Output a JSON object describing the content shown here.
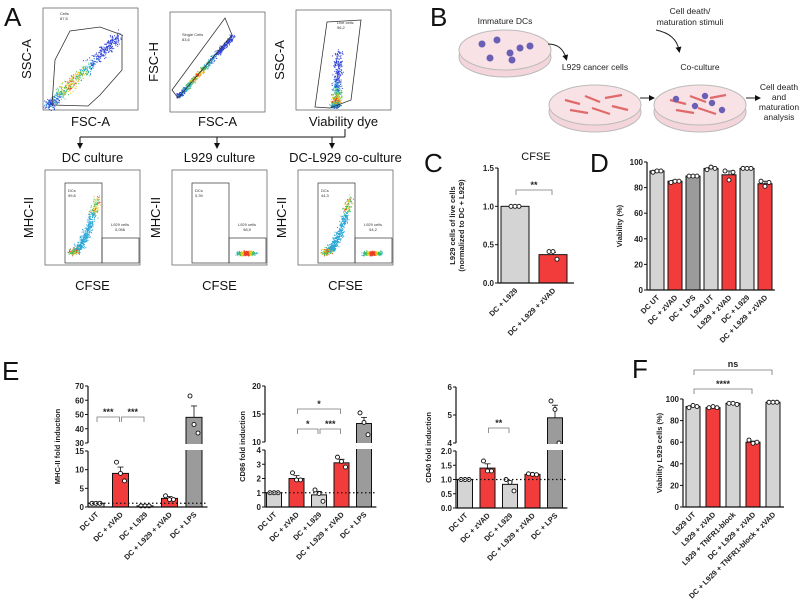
{
  "panels": {
    "A": "A",
    "B": "B",
    "C": "C",
    "D": "D",
    "E": "E",
    "F": "F"
  },
  "flow_gating": [
    {
      "x_label": "FSC-A",
      "y_label": "SSC-A",
      "gate_name": "Cells",
      "gate_value": "87,5"
    },
    {
      "x_label": "FSC-A",
      "y_label": "FSC-H",
      "gate_name": "Single Cells",
      "gate_value": "83,6"
    },
    {
      "x_label": "Viability dye",
      "y_label": "SSC-A",
      "gate_name": "Live cells",
      "gate_value": "96,2"
    }
  ],
  "flow_cultures": [
    {
      "title": "DC culture",
      "x_label": "CFSE",
      "y_label": "MHC-II",
      "gates": [
        {
          "name": "DCs",
          "value": "99,8"
        },
        {
          "name": "L929 cells",
          "value": "0,056"
        }
      ]
    },
    {
      "title": "L929 culture",
      "x_label": "CFSE",
      "y_label": "MHC-II",
      "gates": [
        {
          "name": "DCs",
          "value": "0,39"
        },
        {
          "name": "L929 cells",
          "value": "98,5"
        }
      ]
    },
    {
      "title": "DC-L929 co-culture",
      "x_label": "CFSE",
      "y_label": "MHC-II",
      "gates": [
        {
          "name": "DCs",
          "value": "44,3"
        },
        {
          "name": "L929 cells",
          "value": "54,2"
        }
      ]
    }
  ],
  "schematic": {
    "step1": "Immature DCs",
    "step2": "L929 cancer cells",
    "step3": "Co-culture",
    "stimuli_line1": "Cell death/",
    "stimuli_line2": "maturation stimuli",
    "out_line1": "Cell death",
    "out_line2": "and",
    "out_line3": "maturation",
    "out_line4": "analysis"
  },
  "colors": {
    "light": "#d4d4d4",
    "red": "#f23c3c",
    "dark": "#9b9b9b"
  },
  "chart_data": [
    {
      "id": "C",
      "type": "bar",
      "title": "CFSE",
      "ylabel": [
        "L929 cells of live cells",
        "(normalized to DC + L929)"
      ],
      "categories": [
        "DC + L929",
        "DC + L929 + zVAD"
      ],
      "values": [
        1.0,
        0.37
      ],
      "errors": [
        0,
        0.03
      ],
      "points": [
        [
          1,
          1,
          1
        ],
        [
          0.41,
          0.41,
          0.31
        ]
      ],
      "colors": [
        "light",
        "red"
      ],
      "ylim": [
        0,
        1.5
      ],
      "yticks": [
        "0.0",
        "0.5",
        "1.0",
        "1.5"
      ],
      "significance": [
        {
          "from": 0,
          "to": 1,
          "label": "**"
        }
      ]
    },
    {
      "id": "D",
      "type": "bar",
      "title": "",
      "ylabel": [
        "Viability (%)"
      ],
      "categories": [
        "DC UT",
        "DC + zVAD",
        "DC + LPS",
        "L929 UT",
        "L929 + zVAD",
        "DC + L929",
        "DC + L929 + zVAD"
      ],
      "values": [
        93,
        85,
        89,
        95,
        90,
        95,
        83
      ],
      "errors": [
        0.5,
        0.8,
        0.3,
        0.6,
        3,
        0.3,
        2
      ],
      "points": [
        [
          92,
          93,
          93
        ],
        [
          84,
          85,
          85
        ],
        [
          89,
          89,
          89
        ],
        [
          94,
          96,
          95
        ],
        [
          93,
          86,
          92
        ],
        [
          95,
          95,
          95
        ],
        [
          85,
          81,
          84
        ]
      ],
      "colors": [
        "light",
        "red",
        "dark",
        "light",
        "red",
        "light",
        "red"
      ],
      "ylim": [
        0,
        100
      ],
      "yticks": [
        "0",
        "20",
        "40",
        "60",
        "80",
        "100"
      ],
      "significance": []
    },
    {
      "id": "E-MHCII",
      "type": "bar",
      "title": "",
      "ylabel": [
        "MHC-II fold induction"
      ],
      "categories": [
        "DC UT",
        "DC + zVAD",
        "DC + L929",
        "DC + L929 + zVAD",
        "DC + LPS"
      ],
      "values": [
        1,
        9,
        0.3,
        2.3,
        48
      ],
      "errors": [
        0,
        1.7,
        0.1,
        0.5,
        8
      ],
      "points": [
        [
          1,
          1,
          1
        ],
        [
          12,
          9,
          7
        ],
        [
          0.3,
          0.3,
          0.3
        ],
        [
          3,
          2,
          2
        ],
        [
          63,
          43,
          37
        ]
      ],
      "colors": [
        "light",
        "red",
        "light",
        "red",
        "dark"
      ],
      "ybreak": {
        "lower": [
          0,
          15
        ],
        "upper": [
          30,
          70
        ]
      },
      "yticks_lower": [
        "0",
        "5",
        "10",
        "15"
      ],
      "yticks_upper": [
        "30",
        "40",
        "50",
        "60",
        "70"
      ],
      "reference_line": 1,
      "significance": [
        {
          "from": 0,
          "to": 1,
          "label": "***"
        },
        {
          "from": 1,
          "to": 2,
          "label": "***"
        }
      ]
    },
    {
      "id": "E-CD86",
      "type": "bar",
      "title": "",
      "ylabel": [
        "CD86 fold induction"
      ],
      "categories": [
        "DC UT",
        "DC + zVAD",
        "DC + L929",
        "DC + L929 + zVAD",
        "DC + LPS"
      ],
      "values": [
        1,
        2,
        0.85,
        3.1,
        13.3
      ],
      "errors": [
        0,
        0.2,
        0.25,
        0.25,
        1.1
      ],
      "points": [
        [
          1,
          1,
          1
        ],
        [
          2.4,
          1.9,
          1.9
        ],
        [
          1.2,
          0.95,
          0.4
        ],
        [
          3.5,
          3.2,
          2.8
        ],
        [
          15.2,
          13.5,
          11.3
        ]
      ],
      "colors": [
        "light",
        "red",
        "light",
        "red",
        "dark"
      ],
      "ybreak": {
        "lower": [
          0,
          4
        ],
        "upper": [
          10,
          20
        ]
      },
      "yticks_lower": [
        "0",
        "1",
        "2",
        "3",
        "4"
      ],
      "yticks_upper": [
        "10",
        "15",
        "20"
      ],
      "reference_line": 1,
      "significance": [
        {
          "from": 1,
          "to": 2,
          "label": "*"
        },
        {
          "from": 2,
          "to": 3,
          "label": "***"
        },
        {
          "from": 1,
          "to": 3,
          "label": "*"
        }
      ]
    },
    {
      "id": "E-CD40",
      "type": "bar",
      "title": "",
      "ylabel": [
        "CD40 fold induction"
      ],
      "categories": [
        "DC UT",
        "DC + zVAD",
        "DC + L929",
        "DC + L929 + zVAD",
        "DC + LPS"
      ],
      "values": [
        1,
        1.4,
        0.83,
        1.18,
        4.9
      ],
      "errors": [
        0,
        0.15,
        0.12,
        0.03,
        0.45
      ],
      "points": [
        [
          1,
          1,
          1
        ],
        [
          1.65,
          1.3,
          1.3
        ],
        [
          1.0,
          0.9,
          0.6
        ],
        [
          1.2,
          1.18,
          1.17
        ],
        [
          5.5,
          5.2,
          4.0
        ]
      ],
      "colors": [
        "light",
        "red",
        "light",
        "red",
        "dark"
      ],
      "ybreak": {
        "lower": [
          0,
          2
        ],
        "upper": [
          4,
          6
        ]
      },
      "yticks_lower": [
        "0.0",
        "0.5",
        "1.0",
        "1.5",
        "2.0"
      ],
      "yticks_upper": [
        "4",
        "5",
        "6"
      ],
      "reference_line": 1,
      "significance": [
        {
          "from": 1,
          "to": 2,
          "label": "**"
        }
      ]
    },
    {
      "id": "F",
      "type": "bar",
      "title": "",
      "ylabel": [
        "Viability L929 cells (%)"
      ],
      "categories": [
        "L929 UT",
        "L929 + zVAD",
        "L929 + TNFR1-block",
        "DC + L929 + zVAD",
        "DC + L929 + TNFR1-block + zVAD"
      ],
      "values": [
        93,
        92,
        96,
        60,
        97
      ],
      "errors": [
        0.8,
        0.3,
        0.3,
        1,
        0.2
      ],
      "points": [
        [
          92,
          94,
          93
        ],
        [
          92,
          93,
          92
        ],
        [
          96,
          96,
          95
        ],
        [
          62,
          59,
          60
        ],
        [
          97,
          97,
          97
        ]
      ],
      "colors": [
        "light",
        "red",
        "light",
        "red",
        "light"
      ],
      "ylim": [
        0,
        100
      ],
      "yticks": [
        "0",
        "20",
        "40",
        "60",
        "80",
        "100"
      ],
      "significance": [
        {
          "from": 0,
          "to": 3,
          "label": "****"
        },
        {
          "from": 0,
          "to": 4,
          "label": "ns"
        }
      ]
    }
  ]
}
